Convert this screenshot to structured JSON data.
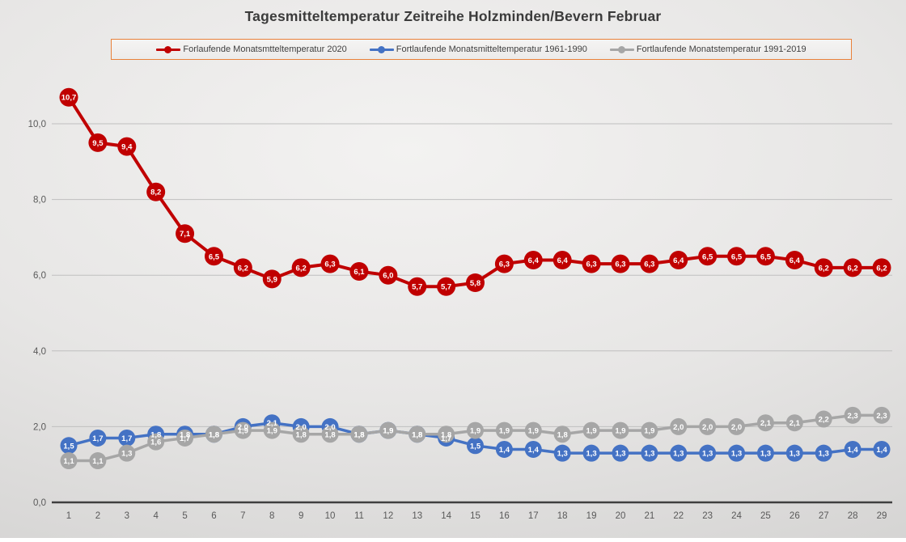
{
  "title": "Tagesmitteltemperatur Zeitreihe Holzminden/Bevern Februar",
  "chart_data": {
    "type": "line",
    "title": "Tagesmitteltemperatur Zeitreihe Holzminden/Bevern Februar",
    "x": [
      1,
      2,
      3,
      4,
      5,
      6,
      7,
      8,
      9,
      10,
      11,
      12,
      13,
      14,
      15,
      16,
      17,
      18,
      19,
      20,
      21,
      22,
      23,
      24,
      25,
      26,
      27,
      28,
      29
    ],
    "xlabel": "",
    "ylabel": "",
    "ylim": [
      0,
      11.3
    ],
    "yticks": [
      0,
      2,
      4,
      6,
      8,
      10
    ],
    "ytick_labels": [
      "0,0",
      "2,0",
      "4,0",
      "6,0",
      "8,0",
      "10,0"
    ],
    "grid": true,
    "legend_position": "top",
    "decimal_separator": ",",
    "series": [
      {
        "name": "Forlaufende Monatsmtteltemperatur 2020",
        "color": "#c00000",
        "marker_radius": 11.5,
        "line_width": 4,
        "values": [
          10.7,
          9.5,
          9.4,
          8.2,
          7.1,
          6.5,
          6.2,
          5.9,
          6.2,
          6.3,
          6.1,
          6.0,
          5.7,
          5.7,
          5.8,
          6.3,
          6.4,
          6.4,
          6.3,
          6.3,
          6.3,
          6.4,
          6.5,
          6.5,
          6.5,
          6.4,
          6.2,
          6.2,
          6.2
        ]
      },
      {
        "name": "Fortlaufende Monatsmitteltemperatur 1961-1990",
        "color": "#4472c4",
        "marker_radius": 10.5,
        "line_width": 3.5,
        "values": [
          1.5,
          1.7,
          1.7,
          1.8,
          1.8,
          1.8,
          2.0,
          2.1,
          2.0,
          2.0,
          1.8,
          1.9,
          1.8,
          1.7,
          1.5,
          1.4,
          1.4,
          1.3,
          1.3,
          1.3,
          1.3,
          1.3,
          1.3,
          1.3,
          1.3,
          1.3,
          1.3,
          1.4,
          1.4
        ]
      },
      {
        "name": "Fortlaufende Monatstemperatur 1991-2019",
        "color": "#a6a6a6",
        "marker_radius": 10.5,
        "line_width": 3.5,
        "values": [
          1.1,
          1.1,
          1.3,
          1.6,
          1.7,
          1.8,
          1.9,
          1.9,
          1.8,
          1.8,
          1.8,
          1.9,
          1.8,
          1.8,
          1.9,
          1.9,
          1.9,
          1.8,
          1.9,
          1.9,
          1.9,
          2.0,
          2.0,
          2.0,
          2.1,
          2.1,
          2.2,
          2.3,
          2.3
        ]
      }
    ],
    "colors": {
      "gridline": "#bfbfbf",
      "axis_line": "#3f3f3f",
      "tick_text": "#595959",
      "data_label_text": "#ffffff",
      "legend_border": "#e9813a"
    }
  }
}
